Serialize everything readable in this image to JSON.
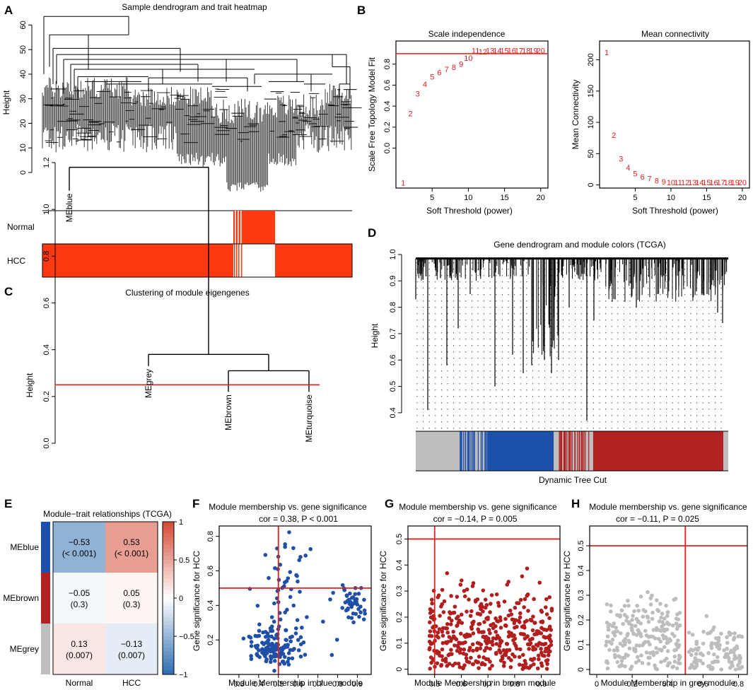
{
  "colors": {
    "red": "#e0201d",
    "trait_red": "#ff3a12",
    "blue": "#1d50ab",
    "brown": "#b22222",
    "grey": "#bebebe",
    "scatter_blue": "#1f4fa6",
    "scatter_brown": "#b01e1e",
    "scatter_grey": "#bdbdbd"
  },
  "panel_labels": {
    "A": "A",
    "B": "B",
    "C": "C",
    "D": "D",
    "E": "E",
    "F": "F",
    "G": "G",
    "H": "H"
  },
  "chart_data": [
    {
      "panel": "A",
      "type": "dendrogram",
      "title": "Sample dendrogram and trait heatmap",
      "ylabel": "Height",
      "ylim": [
        0,
        65
      ],
      "yticks": [
        0,
        10,
        20,
        30,
        40,
        50,
        60
      ],
      "trait_rows": [
        "Normal",
        "HCC"
      ]
    },
    {
      "panel": "B1",
      "type": "scatter",
      "title": "Scale independence",
      "xlabel": "Soft Threshold (power)",
      "ylabel": "Scale Free Topology Model Fit",
      "xlim": [
        0,
        21
      ],
      "ylim": [
        -0.38,
        1.02
      ],
      "xticks": [
        5,
        10,
        15,
        20
      ],
      "yticks": [
        0.0,
        0.2,
        0.4,
        0.6,
        0.8
      ],
      "hline": 0.9,
      "x": [
        1,
        2,
        3,
        4,
        5,
        6,
        7,
        8,
        9,
        10,
        11,
        12,
        13,
        14,
        15,
        16,
        17,
        18,
        19,
        20
      ],
      "y": [
        -0.33,
        0.33,
        0.52,
        0.61,
        0.68,
        0.72,
        0.75,
        0.77,
        0.8,
        0.86,
        0.93,
        0.92,
        0.93,
        0.93,
        0.93,
        0.93,
        0.93,
        0.93,
        0.93,
        0.93
      ]
    },
    {
      "panel": "B2",
      "type": "scatter",
      "title": "Mean connectivity",
      "xlabel": "Soft Threshold (power)",
      "ylabel": "Mean Connectivity",
      "xlim": [
        0,
        21
      ],
      "ylim": [
        -5,
        230
      ],
      "xticks": [
        5,
        10,
        15,
        20
      ],
      "yticks": [
        0,
        50,
        100,
        150,
        200
      ],
      "x": [
        1,
        2,
        3,
        4,
        5,
        6,
        7,
        8,
        9,
        10,
        11,
        12,
        13,
        14,
        15,
        16,
        17,
        18,
        19,
        20
      ],
      "y": [
        212,
        80,
        42,
        28,
        18,
        13,
        10,
        7,
        5,
        4,
        4,
        4,
        4,
        4,
        4,
        4,
        4,
        4,
        4,
        4
      ]
    },
    {
      "panel": "C",
      "type": "dendrogram",
      "title": "Clustering of module eigengenes",
      "ylabel": "Height",
      "ylim": [
        0,
        1.2
      ],
      "yticks": [
        0.0,
        0.2,
        0.4,
        0.6,
        0.8,
        1.0,
        1.2
      ],
      "cut_height": 0.25,
      "leaves": [
        "MEblue",
        "MEgrey",
        "MEbrown",
        "MEturquoise"
      ],
      "leaf_heights": [
        1.08,
        0.33,
        0.22,
        0.22
      ],
      "merges": [
        {
          "left": "MEbrown",
          "right": "MEturquoise",
          "height": 0.22
        },
        {
          "left": "MEgrey",
          "right": "MEbrown+MEturquoise",
          "height": 0.33
        },
        {
          "left": "MEblue",
          "right": "rest",
          "height": 1.18
        }
      ]
    },
    {
      "panel": "D",
      "type": "dendrogram",
      "title": "Gene dendrogram and module colors (TCGA)",
      "ylabel": "Height",
      "ylim": [
        0.33,
        1.0
      ],
      "yticks": [
        0.4,
        0.5,
        0.6,
        0.7,
        0.8,
        0.9,
        1.0
      ],
      "color_bar_label": "Dynamic Tree Cut"
    },
    {
      "panel": "E",
      "type": "heatmap",
      "title": "Module−trait relationships (TCGA)",
      "rows": [
        "MEblue",
        "MEbrown",
        "MEgrey"
      ],
      "cols": [
        "Normal",
        "HCC"
      ],
      "values": [
        [
          -0.53,
          0.53
        ],
        [
          -0.05,
          0.05
        ],
        [
          0.13,
          -0.13
        ]
      ],
      "labels": [
        [
          "−0.53",
          "0.53"
        ],
        [
          "−0.05",
          "0.05"
        ],
        [
          "0.13",
          "−0.13"
        ]
      ],
      "pvalues": [
        [
          "(< 0.001)",
          "(< 0.001)"
        ],
        [
          "(0.3)",
          "(0.3)"
        ],
        [
          "(0.007)",
          "(0.007)"
        ]
      ],
      "legend_ticks": [
        "1",
        "0.5",
        "0",
        "−0.5",
        "−1"
      ],
      "vlim": [
        -1,
        1
      ]
    },
    {
      "panel": "F",
      "type": "scatter",
      "title": "Module membership vs. gene significance",
      "subtitle": "cor = 0.38, P < 0.001",
      "xlabel": "Module Membership in blue module",
      "ylabel": "Gene significance for HCC",
      "xlim": [
        0.2,
        0.97
      ],
      "ylim": [
        0.0,
        0.86
      ],
      "xticks": [
        0.3,
        0.4,
        0.5,
        0.6,
        0.7,
        0.8,
        0.9
      ],
      "yticks": [
        0.2,
        0.4,
        0.6,
        0.8
      ],
      "vline": 0.5,
      "hline": 0.5,
      "n_points": 230
    },
    {
      "panel": "G",
      "type": "scatter",
      "title": "Module membership vs. gene significance",
      "subtitle": "cor = −0.14, P = 0.005",
      "xlabel": "Module Membership in brown module",
      "ylabel": "Gene significance for HCC",
      "xlim": [
        0.4,
        0.97
      ],
      "ylim": [
        -0.02,
        0.55
      ],
      "xticks": [
        0.5,
        0.6,
        0.7,
        0.8,
        0.9
      ],
      "yticks": [
        0.0,
        0.1,
        0.2,
        0.3,
        0.4,
        0.5
      ],
      "vline": 0.5,
      "hline": 0.5,
      "n_points": 420
    },
    {
      "panel": "H",
      "type": "scatter",
      "title": "Module membership vs. gene significance",
      "subtitle": "cor = −0.11, P = 0.025",
      "xlabel": "Module Membership in grey module",
      "ylabel": "Gene significance for HCC",
      "xlim": [
        -0.04,
        0.85
      ],
      "ylim": [
        -0.02,
        0.58
      ],
      "xticks": [
        0.0,
        0.2,
        0.4,
        0.6,
        0.8
      ],
      "yticks": [
        0.0,
        0.1,
        0.2,
        0.3,
        0.4,
        0.5
      ],
      "vline": 0.5,
      "hline": 0.5,
      "n_points": 330
    }
  ]
}
